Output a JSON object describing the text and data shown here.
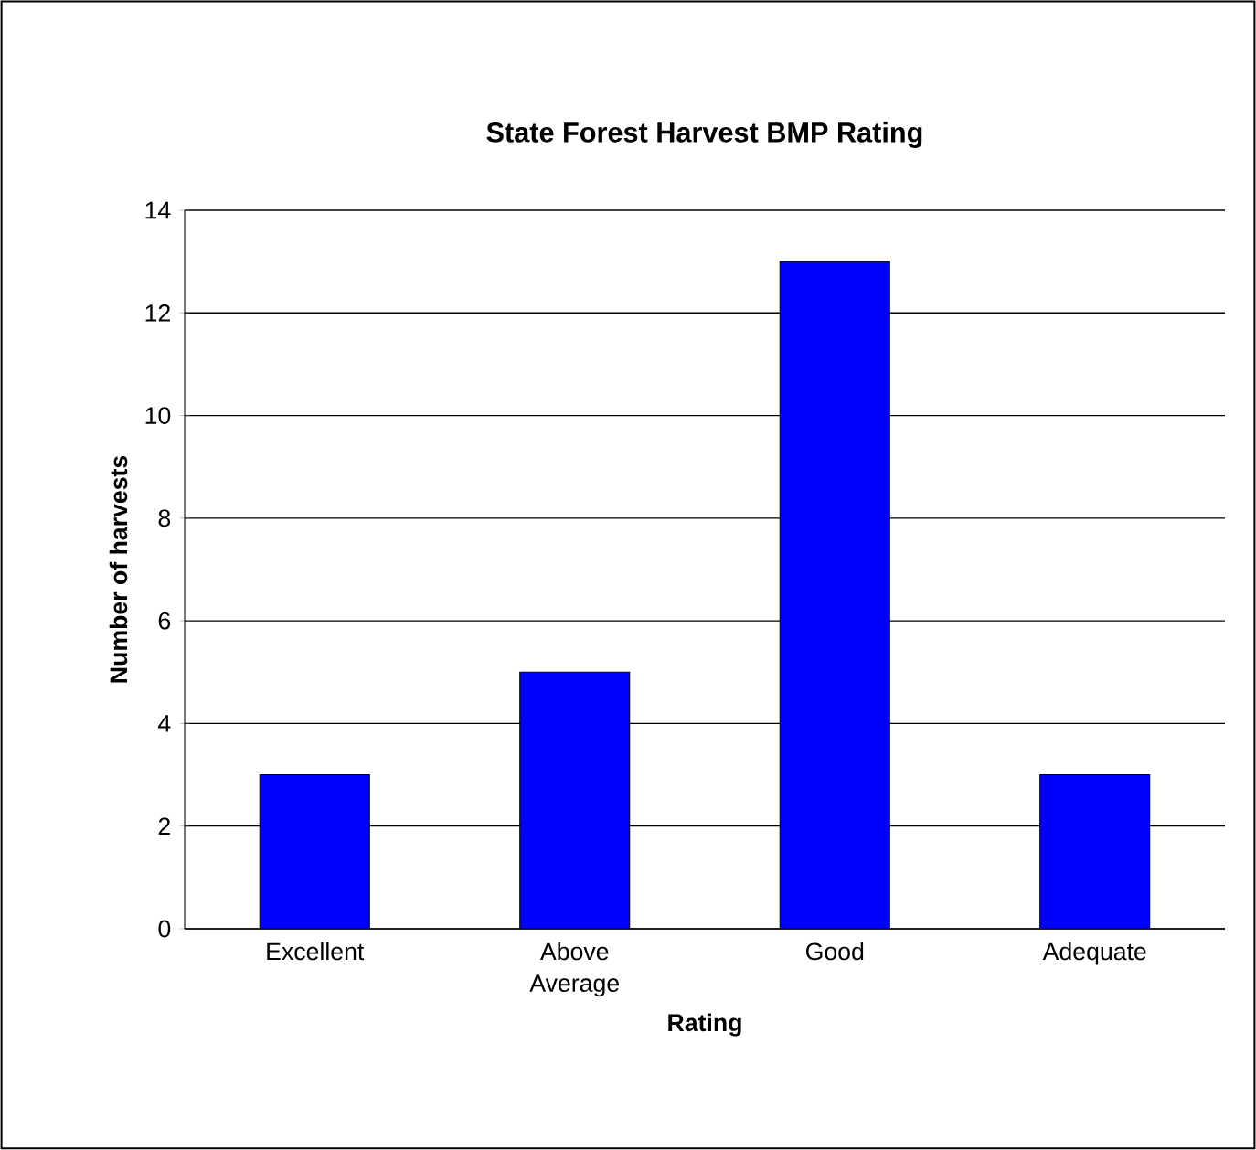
{
  "chart_data": {
    "type": "bar",
    "title": "State Forest Harvest BMP Rating",
    "xlabel": "Rating",
    "ylabel": "Number of harvests",
    "categories": [
      "Excellent",
      "Above Average",
      "Good",
      "Adequate"
    ],
    "values": [
      3,
      5,
      13,
      3
    ],
    "color": "#0000ff",
    "ylim": [
      0,
      14
    ],
    "yticks": [
      0,
      2,
      4,
      6,
      8,
      10,
      12,
      14
    ],
    "grid": "y"
  }
}
